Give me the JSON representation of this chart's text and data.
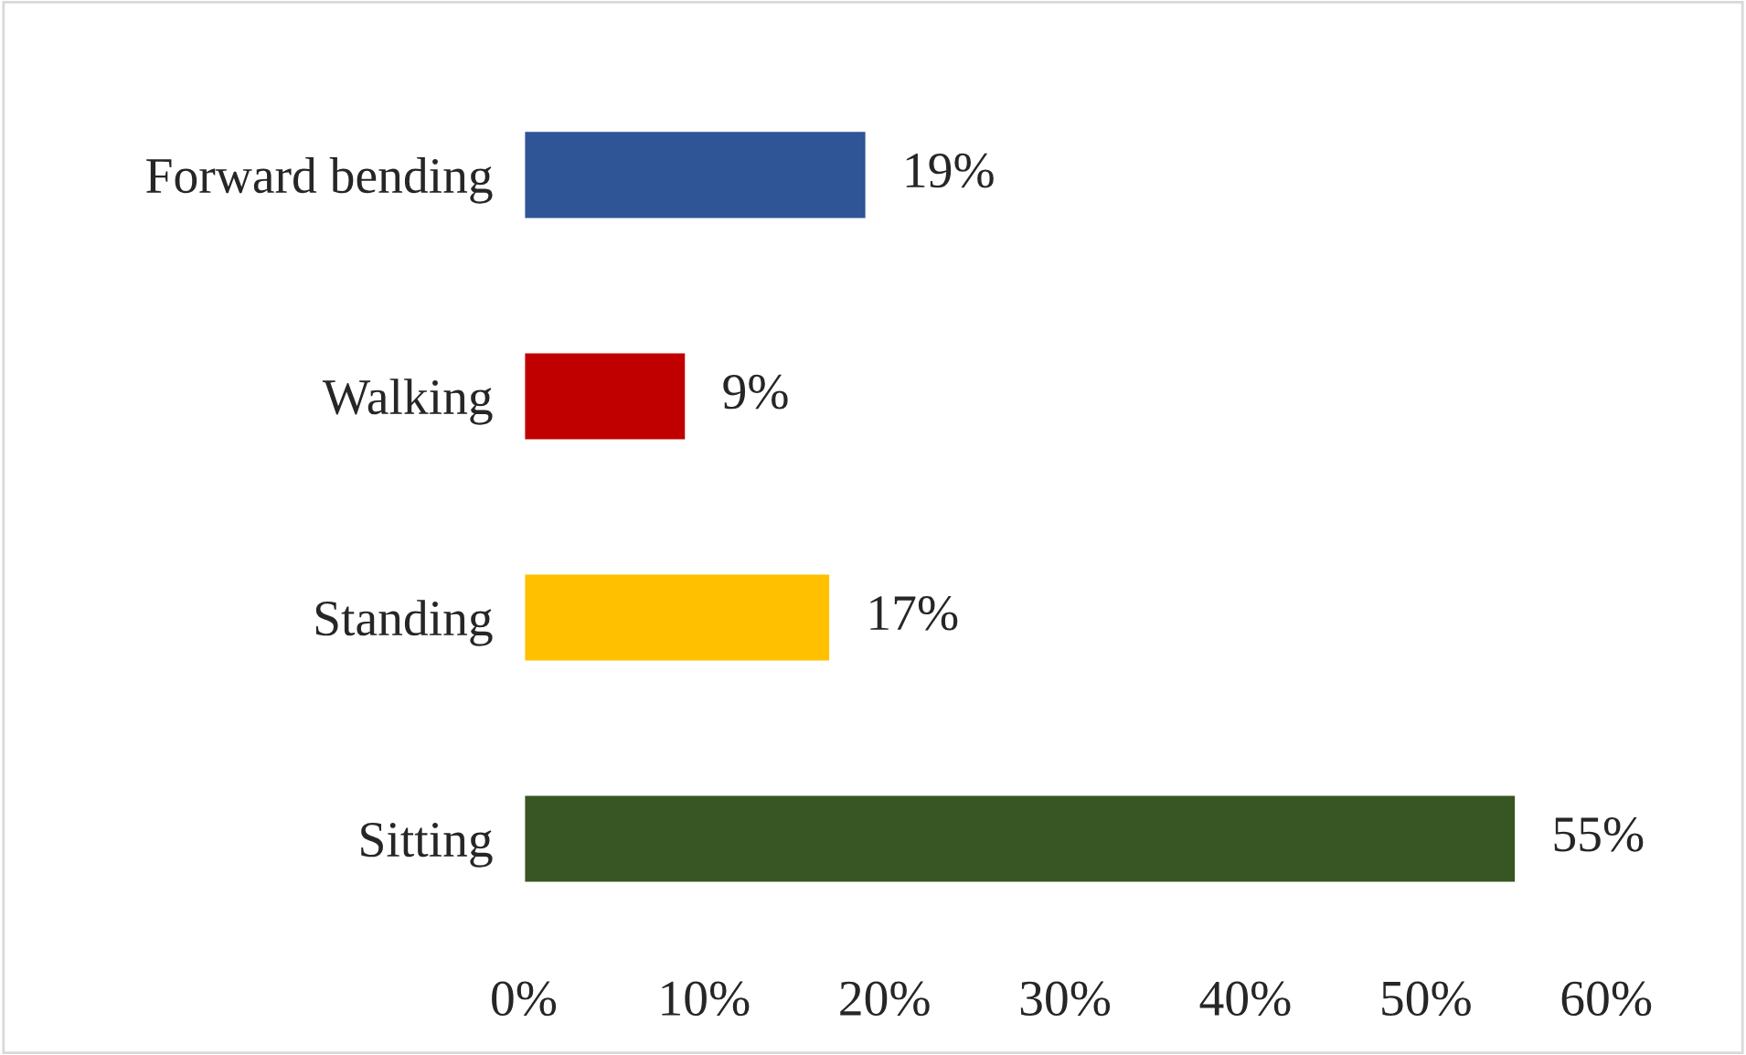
{
  "chart_data": {
    "type": "bar",
    "orientation": "horizontal",
    "categories": [
      "Forward bending",
      "Walking",
      "Standing",
      "Sitting"
    ],
    "values": [
      19,
      9,
      17,
      55
    ],
    "value_labels": [
      "19%",
      "9%",
      "17%",
      "55%"
    ],
    "colors": [
      "#2f5597",
      "#c00000",
      "#ffc000",
      "#375623"
    ],
    "xlim": [
      0,
      60
    ],
    "xticks": [
      {
        "value": 0,
        "label": "0%"
      },
      {
        "value": 10,
        "label": "10%"
      },
      {
        "value": 20,
        "label": "20%"
      },
      {
        "value": 30,
        "label": "30%"
      },
      {
        "value": 40,
        "label": "40%"
      },
      {
        "value": 50,
        "label": "50%"
      },
      {
        "value": 60,
        "label": "60%"
      }
    ],
    "grid": false,
    "legend": false
  }
}
